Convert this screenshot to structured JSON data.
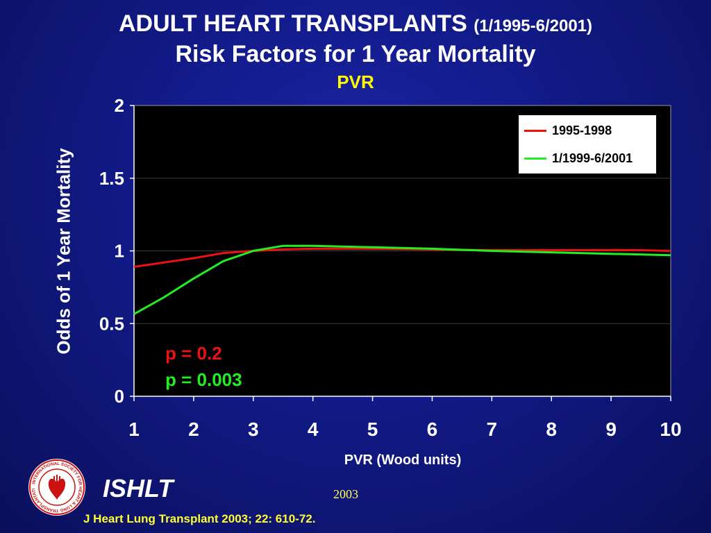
{
  "title": {
    "main": "ADULT HEART TRANSPLANTS",
    "period": "(1/1995-6/2001)",
    "line2": "Risk Factors for 1 Year Mortality",
    "line3": "PVR"
  },
  "colors": {
    "title_highlight": "#ffff00",
    "series_1995_1998": "#ee1111",
    "series_1999_2001": "#22ee22",
    "plot_background": "#000000",
    "citation": "#ffff33"
  },
  "p_values": {
    "p1": "p = 0.2",
    "p2": "p = 0.003"
  },
  "footer": {
    "org": "ISHLT",
    "year": "2003",
    "citation": "J Heart Lung Transplant 2003; 22: 610-72."
  },
  "logo": {
    "icon": "ishlt-seal-icon",
    "text": "INTERNATIONAL SOCIETY FOR HEART & LUNG TRANSPLANTATION"
  },
  "chart_data": {
    "type": "line",
    "xlabel": "PVR (Wood units)",
    "ylabel": "Odds of 1 Year Mortality",
    "xlim": [
      1,
      10
    ],
    "ylim": [
      0,
      2
    ],
    "xticks": [
      1,
      2,
      3,
      4,
      5,
      6,
      7,
      8,
      9,
      10
    ],
    "yticks": [
      0,
      0.5,
      1,
      1.5,
      2
    ],
    "ytick_labels": [
      "0",
      "0.5",
      "1",
      "1.5",
      "2"
    ],
    "grid": "horizontal",
    "legend_position": "top-right",
    "series": [
      {
        "name": "1995-1998",
        "color": "#ee1111",
        "x": [
          1,
          2,
          2.5,
          3,
          3.5,
          4,
          5,
          6,
          7,
          8,
          9,
          9.5,
          10
        ],
        "y": [
          0.89,
          0.95,
          0.985,
          1.0,
          1.01,
          1.015,
          1.015,
          1.01,
          1.005,
          1.005,
          1.005,
          1.005,
          1.0
        ]
      },
      {
        "name": "1/1999-6/2001",
        "color": "#22ee22",
        "x": [
          1,
          1.5,
          2,
          2.5,
          3,
          3.5,
          4,
          5,
          6,
          7,
          8,
          9,
          10
        ],
        "y": [
          0.565,
          0.68,
          0.81,
          0.93,
          1.0,
          1.035,
          1.035,
          1.025,
          1.015,
          1.0,
          0.99,
          0.98,
          0.97
        ]
      }
    ]
  }
}
